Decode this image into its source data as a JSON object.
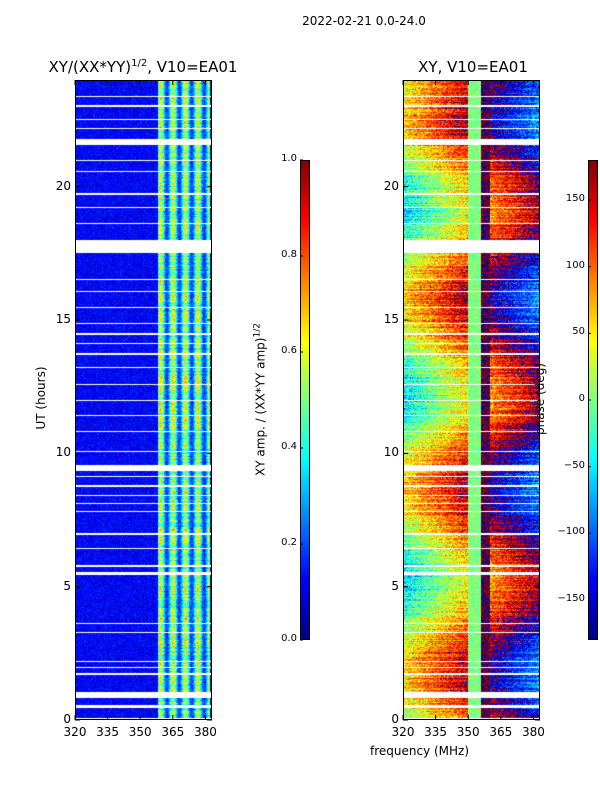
{
  "chart_data": {
    "type": "heatmap",
    "suptitle": "2022-02-21 0.0-24.0",
    "shared_xlabel": "frequency (MHz)",
    "panels": [
      {
        "title_pre": "XY/(XX*YY)",
        "title_exp": "1/2",
        "title_post": ", V10=EA01",
        "xlim": [
          320,
          383
        ],
        "ylim": [
          0,
          24
        ],
        "xticks": [
          "320",
          "335",
          "350",
          "365",
          "380"
        ],
        "xtick_values": [
          320,
          335,
          350,
          365,
          380
        ],
        "yticks": [
          "0",
          "5",
          "10",
          "15",
          "20"
        ],
        "ytick_values": [
          0,
          5,
          10,
          15,
          20
        ],
        "ylabel": "UT (hours)",
        "colorbar": {
          "label_pre": "XY amp. / (XX*YY amp)",
          "label_exp": "1/2",
          "range": [
            0.0,
            1.0
          ],
          "ticks": [
            "0.0",
            "0.2",
            "0.4",
            "0.6",
            "0.8",
            "1.0"
          ],
          "tick_values": [
            0.0,
            0.2,
            0.4,
            0.6,
            0.8,
            1.0
          ],
          "colormap": "jet"
        },
        "typical_value": 0.12,
        "high_value_band_mhz": [
          358,
          382
        ],
        "high_value_level": 0.45
      },
      {
        "title": "XY, V10=EA01",
        "xlim": [
          320,
          383
        ],
        "ylim": [
          0,
          24
        ],
        "xticks": [
          "320",
          "335",
          "350",
          "365",
          "380"
        ],
        "xtick_values": [
          320,
          335,
          350,
          365,
          380
        ],
        "yticks": [
          "0",
          "5",
          "10",
          "15",
          "20"
        ],
        "ytick_values": [
          0,
          5,
          10,
          15,
          20
        ],
        "colorbar": {
          "label": "phase (deg)",
          "range": [
            -180,
            180
          ],
          "ticks": [
            "−150",
            "−100",
            "−50",
            "0",
            "50",
            "100",
            "150"
          ],
          "tick_values": [
            -150,
            -100,
            -50,
            0,
            50,
            100,
            150
          ],
          "colormap": "jet"
        },
        "phase_structure": "vertical bands, ~0 deg near 350-356 MHz, +/-180 deg near 356-360 MHz"
      }
    ],
    "flagged_ut_hours": [
      [
        0.0,
        0.07
      ],
      [
        0.45,
        0.55
      ],
      [
        0.82,
        1.05
      ],
      [
        1.7,
        1.78
      ],
      [
        1.95,
        2.0
      ],
      [
        2.18,
        2.22
      ],
      [
        3.25,
        3.3
      ],
      [
        3.6,
        3.65
      ],
      [
        5.45,
        5.55
      ],
      [
        5.75,
        5.8
      ],
      [
        6.4,
        6.45
      ],
      [
        6.95,
        7.0
      ],
      [
        7.8,
        7.85
      ],
      [
        8.1,
        8.15
      ],
      [
        8.4,
        8.45
      ],
      [
        8.75,
        8.8
      ],
      [
        9.1,
        9.15
      ],
      [
        9.35,
        9.55
      ],
      [
        10.05,
        10.1
      ],
      [
        10.8,
        10.85
      ],
      [
        11.4,
        11.45
      ],
      [
        11.95,
        12.0
      ],
      [
        12.55,
        12.6
      ],
      [
        13.2,
        13.25
      ],
      [
        13.7,
        13.75
      ],
      [
        14.1,
        14.15
      ],
      [
        14.45,
        14.5
      ],
      [
        14.85,
        14.9
      ],
      [
        15.45,
        15.5
      ],
      [
        16.05,
        16.1
      ],
      [
        16.5,
        16.55
      ],
      [
        17.5,
        18.0
      ],
      [
        18.6,
        18.65
      ],
      [
        19.2,
        19.25
      ],
      [
        19.7,
        19.75
      ],
      [
        20.55,
        20.6
      ],
      [
        20.95,
        21.0
      ],
      [
        21.55,
        21.8
      ],
      [
        22.15,
        22.2
      ],
      [
        22.5,
        22.55
      ],
      [
        23.0,
        23.05
      ],
      [
        23.35,
        23.4
      ]
    ]
  }
}
